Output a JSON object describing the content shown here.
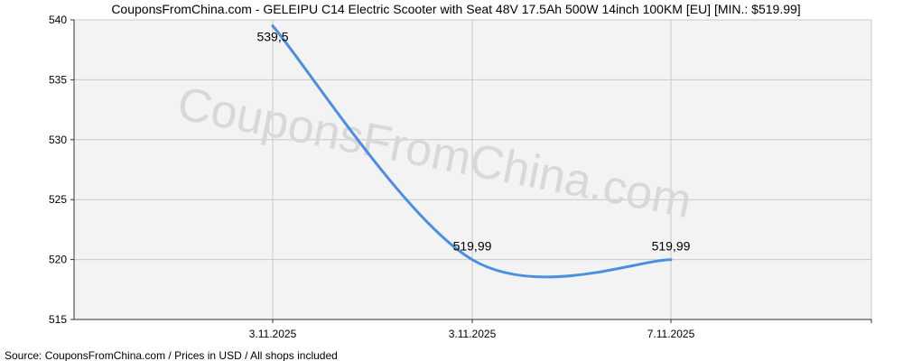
{
  "chart_data": {
    "type": "line",
    "title": "CouponsFromChina.com - GELEIPU C14 Electric Scooter with Seat 48V 17.5Ah 500W 14inch 100KM [EU] [MIN.: $519.99]",
    "watermark": "CouponsFromChina.com",
    "source": "Source: CouponsFromChina.com / Prices in USD / All shops included",
    "x_tick_labels": [
      "3.11.2025",
      "3.11.2025",
      "7.11.2025"
    ],
    "ylim": [
      515,
      540
    ],
    "y_ticks": [
      515,
      520,
      525,
      530,
      535,
      540
    ],
    "series": [
      {
        "values": [
          539.5,
          519.99,
          519.99
        ],
        "point_labels": [
          "539,5",
          "519,99",
          "519,99"
        ],
        "color": "#4a8fe0"
      }
    ],
    "grid": true,
    "colors": {
      "line": "#4a8fe0",
      "plot_bg": "#f3f3f3",
      "grid": "#c8c8c8",
      "axis": "#333333",
      "text": "#000000",
      "watermark": "#d8d8d8"
    }
  }
}
